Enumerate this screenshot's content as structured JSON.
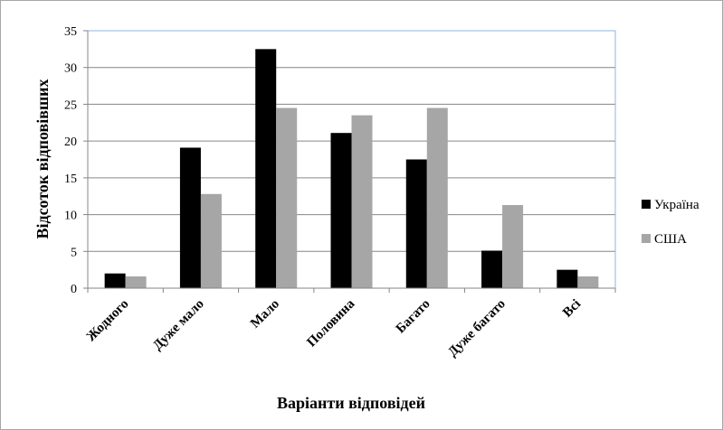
{
  "chart_data": {
    "type": "bar",
    "title": "",
    "xlabel": "Варіанти відповідей",
    "ylabel": "Відсоток відповівших",
    "ylim": [
      0,
      35
    ],
    "yticks": [
      0,
      5,
      10,
      15,
      20,
      25,
      30,
      35
    ],
    "grid": true,
    "legend_position": "right",
    "categories": [
      "Жодного",
      "Дуже мало",
      "Мало",
      "Половина",
      "Багато",
      "Дуже багато",
      "Всі"
    ],
    "series": [
      {
        "name": "Україна",
        "color": "#000000",
        "values": [
          2.0,
          19.1,
          32.5,
          21.1,
          17.5,
          5.1,
          2.5
        ]
      },
      {
        "name": "США",
        "color": "#a6a6a6",
        "values": [
          1.6,
          12.8,
          24.5,
          23.5,
          24.5,
          11.3,
          1.6
        ]
      }
    ]
  }
}
